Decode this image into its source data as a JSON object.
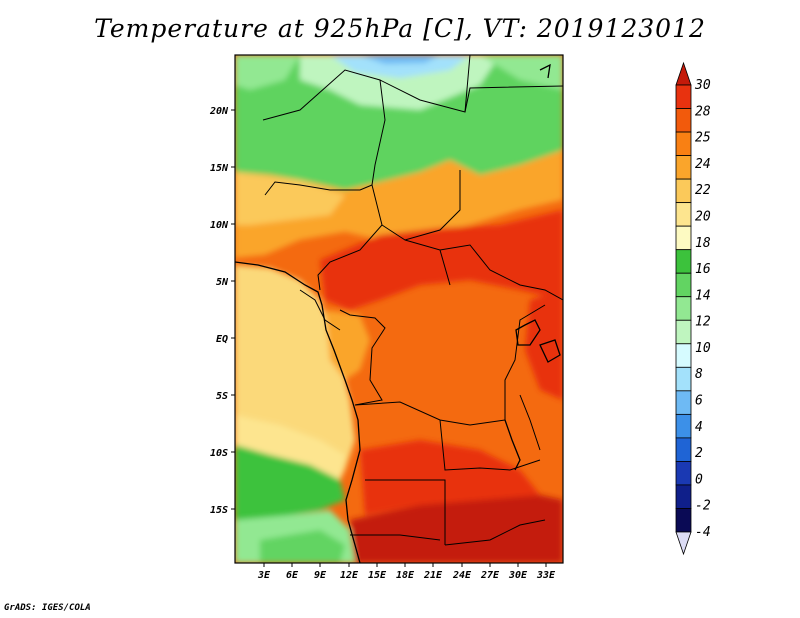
{
  "title": "Temperature at 925hPa [C], VT: 2019123012",
  "credit": "GrADS: IGES/COLA",
  "map": {
    "lat_labels": [
      "20N",
      "15N",
      "10N",
      "5N",
      "EQ",
      "5S",
      "10S",
      "15S"
    ],
    "lon_labels": [
      "3E",
      "6E",
      "9E",
      "12E",
      "15E",
      "18E",
      "21E",
      "24E",
      "27E",
      "30E",
      "33E"
    ]
  },
  "colorbar": {
    "labels": [
      "30",
      "28",
      "25",
      "24",
      "22",
      "20",
      "18",
      "16",
      "14",
      "12",
      "10",
      "8",
      "6",
      "4",
      "2",
      "0",
      "-2",
      "-4"
    ],
    "colors": [
      "#c41a0a",
      "#e8320f",
      "#f25a0c",
      "#f98013",
      "#faa52b",
      "#fbc95a",
      "#fde58f",
      "#fdfac2",
      "#3cc23c",
      "#62d462",
      "#92e892",
      "#bff5bf",
      "#d6fbff",
      "#a3e1fb",
      "#6ebaf4",
      "#3c90e8",
      "#1f64d5",
      "#1a39b3",
      "#0f1f8a",
      "#0a0a55",
      "#dcdcf5"
    ]
  }
}
